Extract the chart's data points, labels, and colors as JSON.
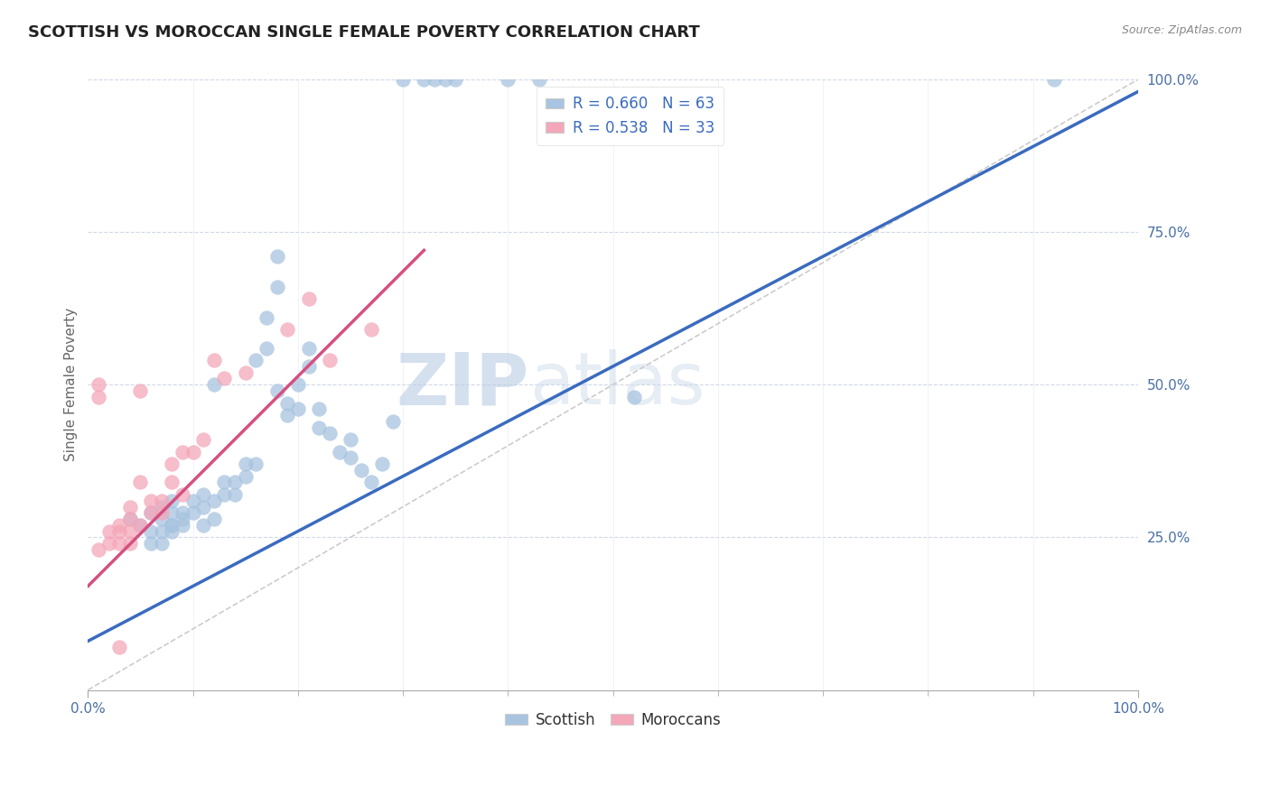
{
  "title": "SCOTTISH VS MOROCCAN SINGLE FEMALE POVERTY CORRELATION CHART",
  "source": "Source: ZipAtlas.com",
  "ylabel": "Single Female Poverty",
  "xlim": [
    0,
    1.0
  ],
  "ylim": [
    0,
    1.0
  ],
  "xticks": [
    0,
    0.1,
    0.2,
    0.3,
    0.4,
    0.5,
    0.6,
    0.7,
    0.8,
    0.9,
    1.0
  ],
  "yticks": [
    0,
    0.25,
    0.5,
    0.75,
    1.0
  ],
  "xticklabels_major": [
    "0.0%",
    "",
    "",
    "",
    "",
    "",
    "",
    "",
    "",
    "",
    "100.0%"
  ],
  "yticklabels": [
    "",
    "25.0%",
    "50.0%",
    "75.0%",
    "100.0%"
  ],
  "R_scottish": 0.66,
  "N_scottish": 63,
  "R_moroccan": 0.538,
  "N_moroccan": 33,
  "scottish_color": "#a8c4e0",
  "moroccan_color": "#f4a7b9",
  "trend_scottish_color": "#3a6bbf",
  "trend_moroccan_color": "#d45080",
  "diagonal_color": "#cccccc",
  "background_color": "#ffffff",
  "grid_color": "#d0d8e8",
  "scottish_x": [
    0.3,
    0.32,
    0.33,
    0.34,
    0.35,
    0.4,
    0.43,
    0.04,
    0.05,
    0.06,
    0.06,
    0.07,
    0.07,
    0.07,
    0.08,
    0.08,
    0.08,
    0.08,
    0.09,
    0.09,
    0.09,
    0.1,
    0.1,
    0.11,
    0.11,
    0.11,
    0.12,
    0.12,
    0.13,
    0.13,
    0.14,
    0.14,
    0.15,
    0.15,
    0.16,
    0.17,
    0.17,
    0.18,
    0.18,
    0.19,
    0.19,
    0.2,
    0.2,
    0.21,
    0.21,
    0.22,
    0.22,
    0.23,
    0.24,
    0.25,
    0.25,
    0.26,
    0.27,
    0.28,
    0.29,
    0.52,
    0.92,
    0.06,
    0.07,
    0.08,
    0.12,
    0.16,
    0.18
  ],
  "scottish_y": [
    1.0,
    1.0,
    1.0,
    1.0,
    1.0,
    1.0,
    1.0,
    0.28,
    0.27,
    0.26,
    0.29,
    0.26,
    0.28,
    0.3,
    0.27,
    0.29,
    0.27,
    0.31,
    0.27,
    0.29,
    0.28,
    0.29,
    0.31,
    0.27,
    0.3,
    0.32,
    0.28,
    0.31,
    0.32,
    0.34,
    0.32,
    0.34,
    0.35,
    0.37,
    0.37,
    0.56,
    0.61,
    0.66,
    0.71,
    0.45,
    0.47,
    0.46,
    0.5,
    0.53,
    0.56,
    0.43,
    0.46,
    0.42,
    0.39,
    0.38,
    0.41,
    0.36,
    0.34,
    0.37,
    0.44,
    0.48,
    1.0,
    0.24,
    0.24,
    0.26,
    0.5,
    0.54,
    0.49
  ],
  "moroccan_x": [
    0.01,
    0.01,
    0.01,
    0.02,
    0.02,
    0.03,
    0.03,
    0.03,
    0.04,
    0.04,
    0.04,
    0.04,
    0.05,
    0.05,
    0.05,
    0.06,
    0.06,
    0.07,
    0.07,
    0.08,
    0.08,
    0.09,
    0.09,
    0.1,
    0.11,
    0.12,
    0.13,
    0.15,
    0.19,
    0.21,
    0.23,
    0.27,
    0.03
  ],
  "moroccan_y": [
    0.5,
    0.48,
    0.23,
    0.26,
    0.24,
    0.26,
    0.27,
    0.24,
    0.28,
    0.26,
    0.24,
    0.3,
    0.27,
    0.34,
    0.49,
    0.29,
    0.31,
    0.29,
    0.31,
    0.34,
    0.37,
    0.32,
    0.39,
    0.39,
    0.41,
    0.54,
    0.51,
    0.52,
    0.59,
    0.64,
    0.54,
    0.59,
    0.07
  ],
  "watermark_zip": "ZIP",
  "watermark_atlas": "atlas",
  "trend_s_x0": 0.0,
  "trend_s_x1": 1.0,
  "trend_s_y0": 0.08,
  "trend_s_y1": 0.98,
  "trend_m_x0": 0.0,
  "trend_m_x1": 0.32,
  "trend_m_y0": 0.17,
  "trend_m_y1": 0.72
}
